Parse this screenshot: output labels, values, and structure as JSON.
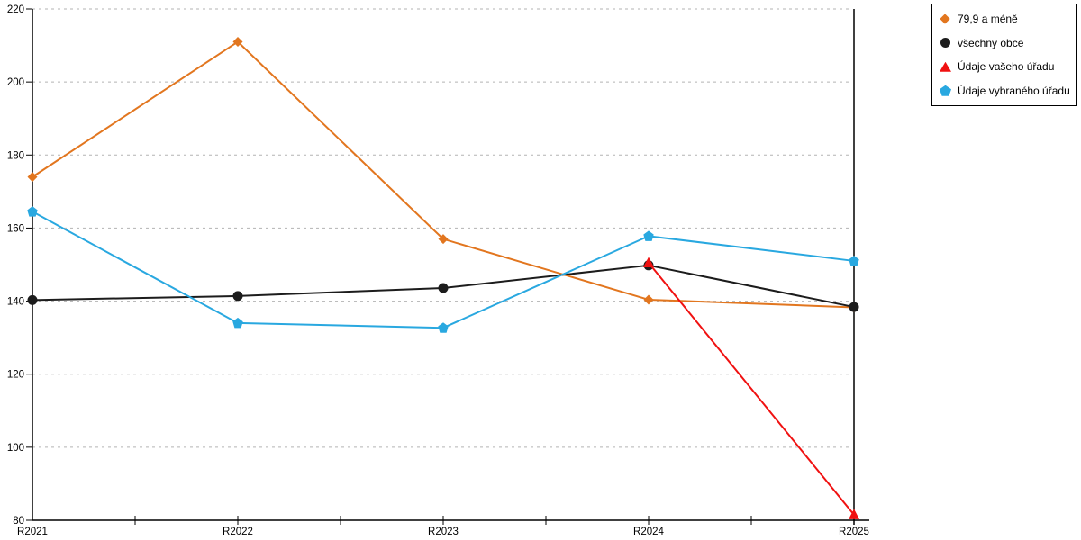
{
  "page": {
    "background": "#ffffff"
  },
  "chart_data": {
    "type": "line",
    "title": "",
    "xlabel": "",
    "ylabel": "",
    "categories": [
      "R2021",
      "R2022",
      "R2023",
      "R2024",
      "R2025"
    ],
    "series": [
      {
        "name": "79,9 a méně",
        "color": "#E2761F",
        "marker": "diamond",
        "values": [
          174,
          211,
          157,
          140.4,
          138.3
        ]
      },
      {
        "name": "všechny obce",
        "color": "#1c1c1c",
        "marker": "circle",
        "values": [
          140.3,
          141.4,
          143.6,
          149.8,
          138.4
        ]
      },
      {
        "name": "Údaje vašeho úřadu",
        "color": "#F01111",
        "marker": "triangle",
        "values": [
          null,
          null,
          null,
          150.5,
          81.5
        ]
      },
      {
        "name": "Údaje vybraného úřadu",
        "color": "#29A8E0",
        "marker": "pentagon",
        "values": [
          164.5,
          134,
          132.7,
          157.8,
          151
        ]
      }
    ],
    "ylim": [
      80,
      220
    ],
    "ytick_step": 20,
    "grid": "horizontal-dashed",
    "gridline_color": "#b3b3b3",
    "axis_color": "#000000",
    "legend_position": "top-right"
  }
}
